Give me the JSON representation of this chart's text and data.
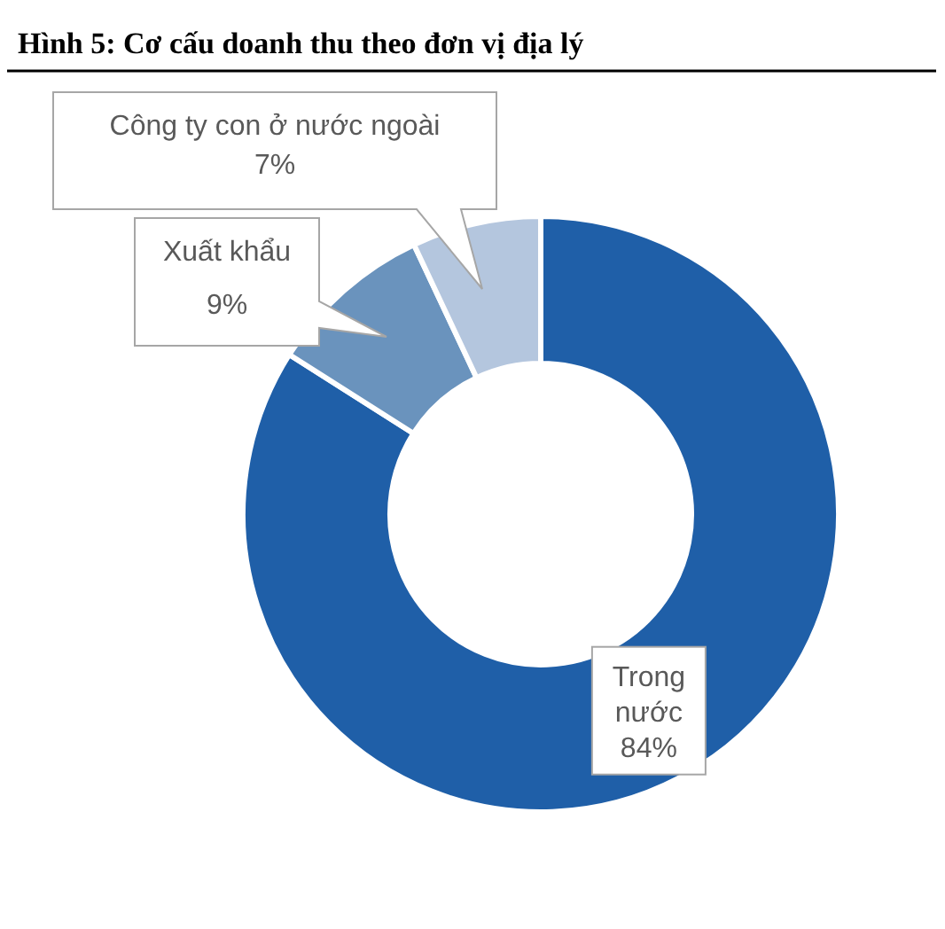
{
  "chart_data": {
    "type": "donut",
    "title": "Hình 5: Cơ cấu doanh thu theo đơn vị địa lý",
    "categories": [
      "Trong nước",
      "Xuất khẩu",
      "Công ty con ở nước ngoài"
    ],
    "values": [
      84,
      9,
      7
    ],
    "value_labels": [
      "84%",
      "9%",
      "7%"
    ],
    "colors": [
      "#1f5fa8",
      "#6a93bd",
      "#b4c6de"
    ]
  }
}
